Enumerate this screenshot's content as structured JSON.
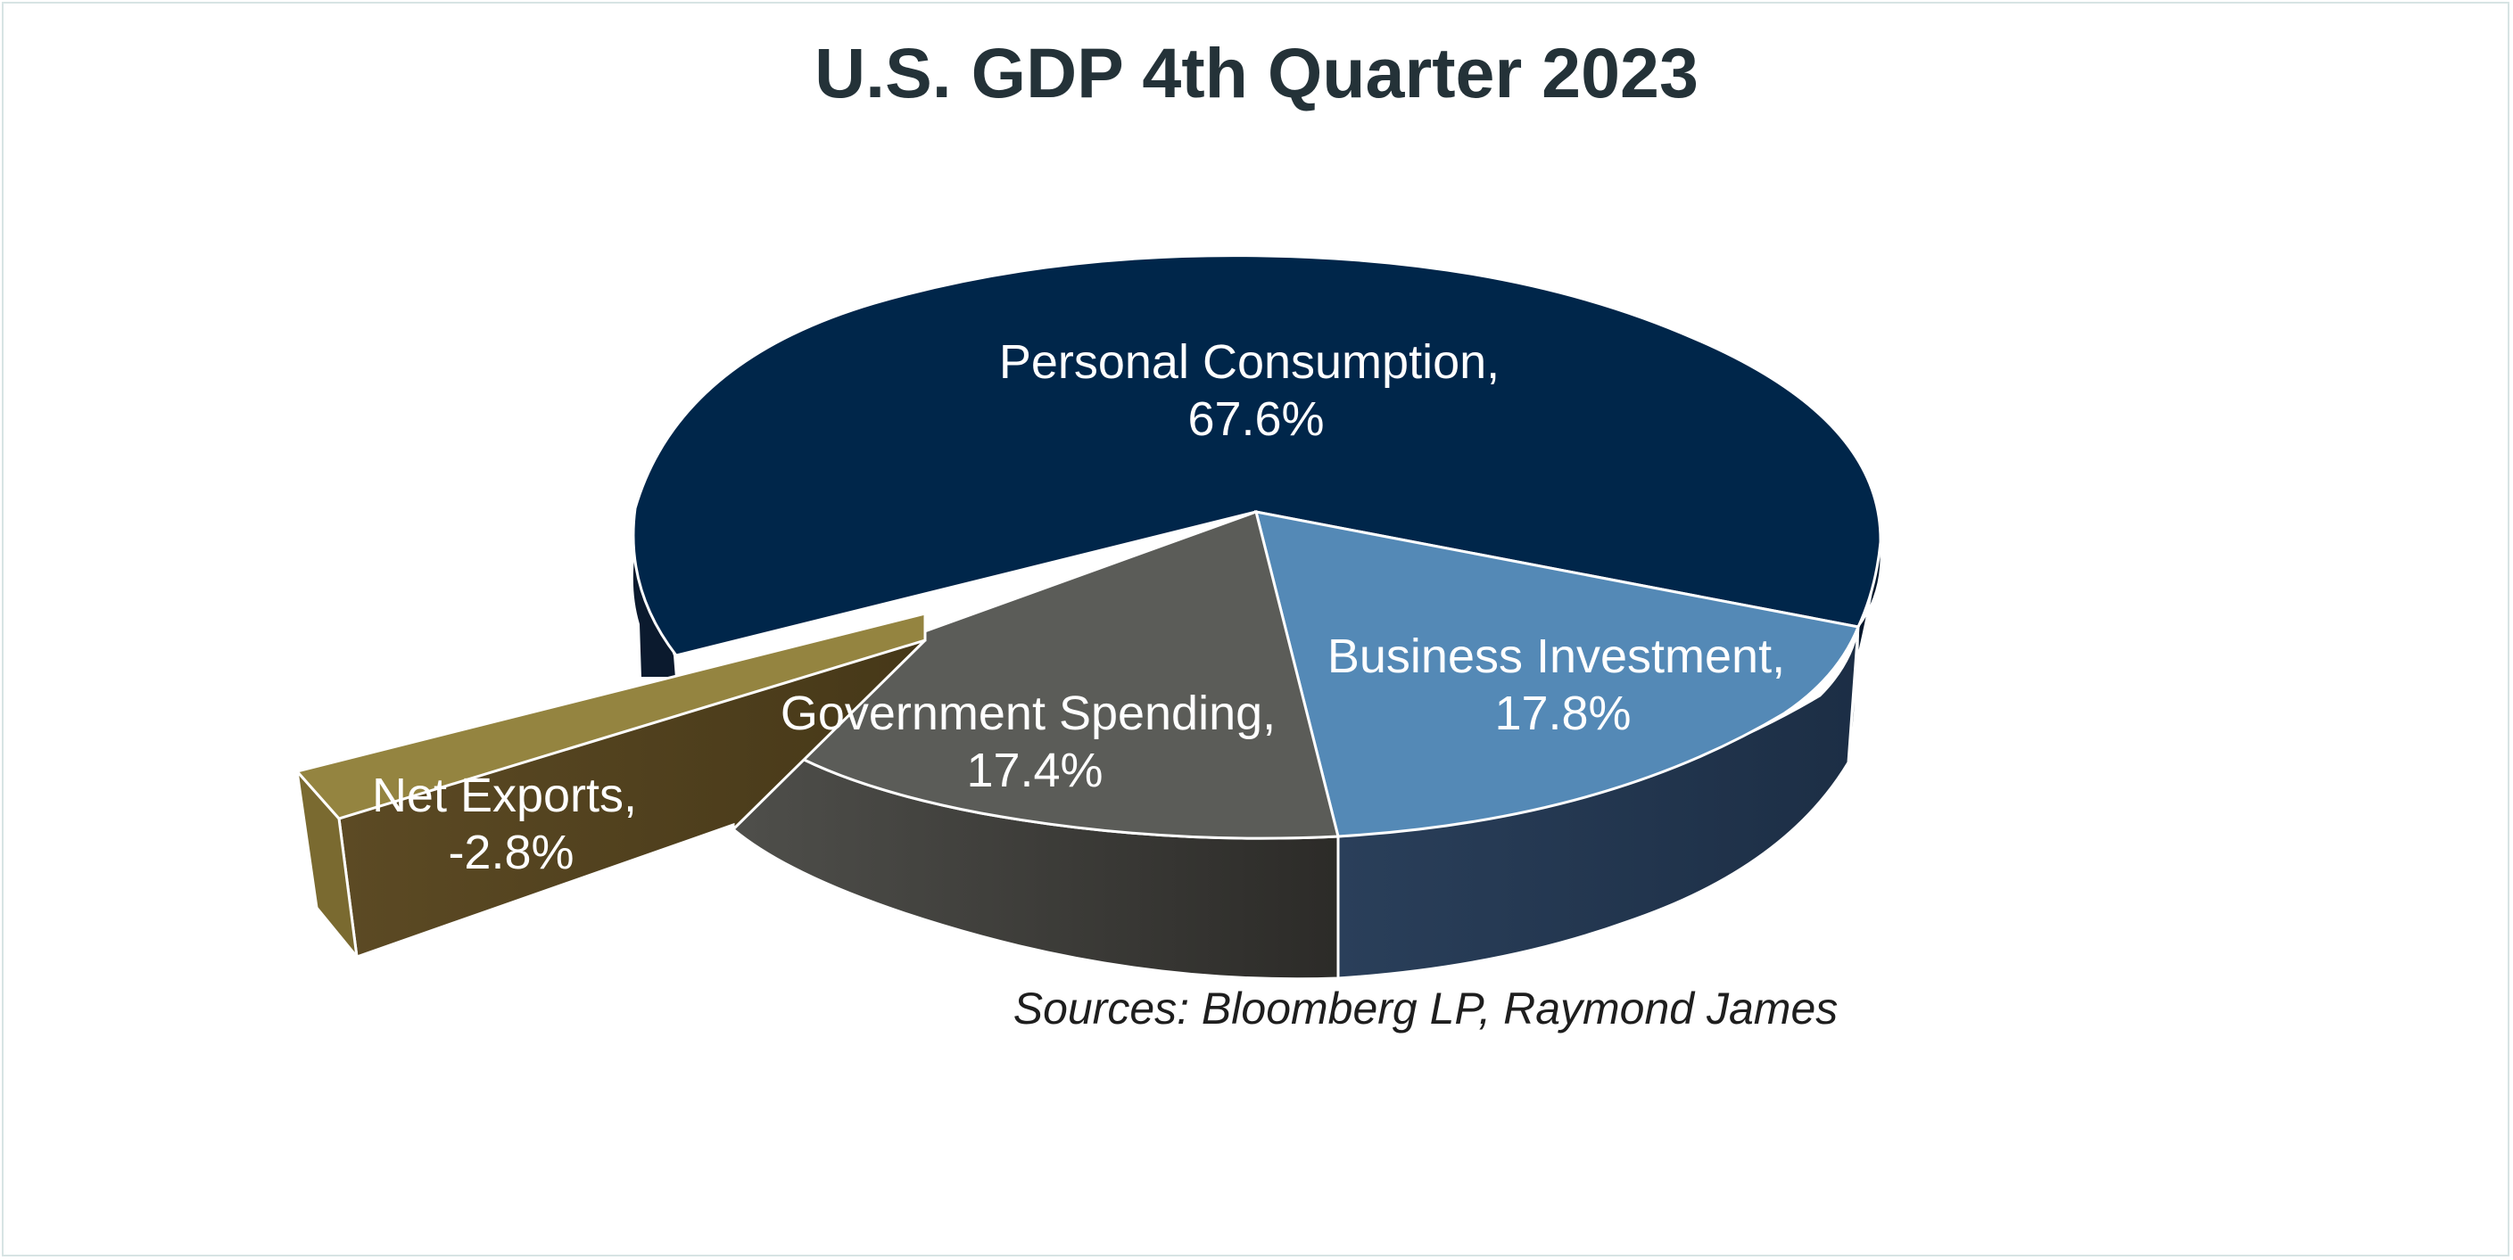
{
  "chart_data": {
    "type": "pie",
    "title": "U.S. GDP 4th Quarter 2023",
    "slices": [
      {
        "name": "Personal Consumption",
        "value": 67.6,
        "label_line1": "Personal Consumption,",
        "label_line2": "67.6%",
        "color": "#00264a"
      },
      {
        "name": "Business Investment",
        "value": 17.8,
        "label_line1": "Business Investment,",
        "label_line2": "17.8%",
        "color": "#5489b6"
      },
      {
        "name": "Government Spending",
        "value": 17.4,
        "label_line1": "Government Spending,",
        "label_line2": "17.4%",
        "color": "#5b5c58"
      },
      {
        "name": "Net Exports",
        "value": -2.8,
        "label_line1": "Net Exports,",
        "label_line2": "-2.8%",
        "color": "#948440"
      }
    ],
    "source_note": "Sources: Bloomberg LP, Raymond James",
    "style": "3d-exploded"
  }
}
